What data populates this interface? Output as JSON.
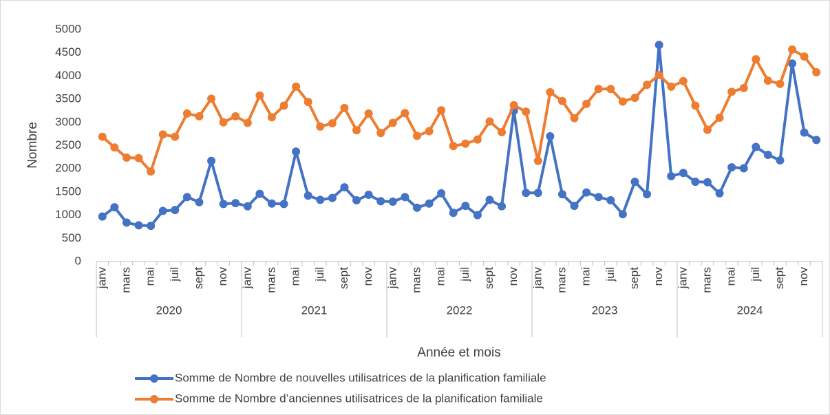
{
  "chart_data": {
    "type": "line",
    "x_label": "Année et mois",
    "y_label": "Nombre",
    "categories": [
      "janv",
      null,
      "mars",
      null,
      "mai",
      null,
      "juil",
      null,
      "sept",
      null,
      "nov",
      null,
      "janv",
      null,
      "mars",
      null,
      "mai",
      null,
      "juil",
      null,
      "sept",
      null,
      "nov",
      null,
      "janv",
      null,
      "mars",
      null,
      "mai",
      null,
      "juil",
      null,
      "sept",
      null,
      "nov",
      null,
      "janv",
      null,
      "mars",
      null,
      "mai",
      null,
      "juil",
      null,
      "sept",
      null,
      "nov",
      null,
      "janv",
      null,
      "mars",
      null,
      "mai",
      null,
      "juil",
      null,
      "sept",
      null,
      "nov",
      null
    ],
    "category_groups": [
      "2020",
      "2021",
      "2022",
      "2023",
      "2024"
    ],
    "series": [
      {
        "name": "Somme de Nombre de nouvelles utilisatrices de la planification familiale",
        "color": "#4472c4",
        "values": [
          970,
          1170,
          840,
          780,
          770,
          1090,
          1110,
          1390,
          1280,
          2170,
          1240,
          1260,
          1190,
          1460,
          1250,
          1240,
          2370,
          1420,
          1330,
          1370,
          1600,
          1320,
          1440,
          1300,
          1290,
          1390,
          1160,
          1250,
          1470,
          1050,
          1200,
          1000,
          1330,
          1190,
          3250,
          1480,
          1480,
          2700,
          1450,
          1200,
          1490,
          1390,
          1320,
          1020,
          1720,
          1450,
          4670,
          1840,
          1910,
          1720,
          1710,
          1470,
          2030,
          2010,
          2470,
          2300,
          2180,
          4270,
          2780,
          2620
        ]
      },
      {
        "name": "Somme de Nombre d’anciennes utilisatrices de la planification familiale",
        "color": "#ed7d31",
        "values": [
          2690,
          2460,
          2240,
          2230,
          1940,
          2740,
          2690,
          3190,
          3130,
          3510,
          3000,
          3130,
          2990,
          3580,
          3110,
          3360,
          3770,
          3440,
          2910,
          2980,
          3310,
          2830,
          3190,
          2770,
          2990,
          3200,
          2710,
          2810,
          3260,
          2490,
          2540,
          2630,
          3020,
          2790,
          3370,
          3230,
          2170,
          3650,
          3460,
          3090,
          3400,
          3720,
          3720,
          3450,
          3530,
          3810,
          4020,
          3770,
          3890,
          3360,
          2840,
          3100,
          3660,
          3740,
          4360,
          3900,
          3830,
          4570,
          4420,
          4080
        ]
      }
    ],
    "ylim": [
      0,
      5000
    ],
    "yticks": [
      0,
      500,
      1000,
      1500,
      2000,
      2500,
      3000,
      3500,
      4000,
      4500,
      5000
    ],
    "grid": false,
    "legend": "bottom"
  }
}
